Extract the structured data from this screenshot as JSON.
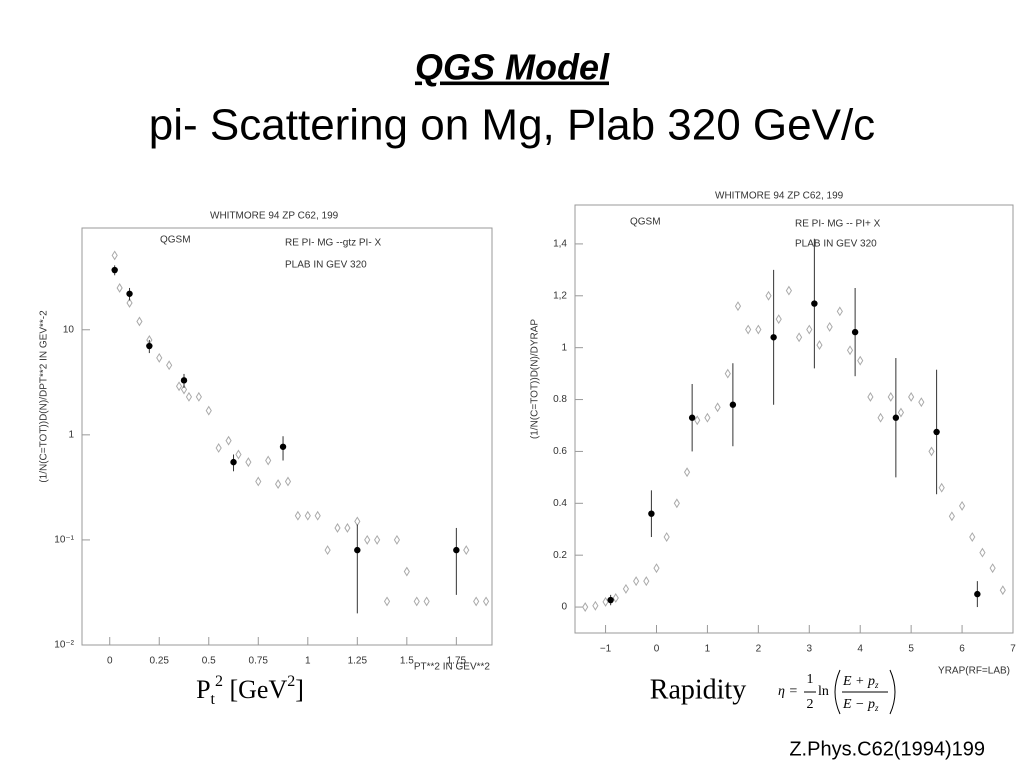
{
  "slide": {
    "title": "QGS Model",
    "subtitle": "pi- Scattering on Mg, Plab 320 GeV/c",
    "citation": "Z.Phys.C62(1994)199",
    "left_caption": {
      "base": "P",
      "sub": "t",
      "sup": "2",
      "unit": "[GeV",
      "unit_sup": "2",
      "close": "]"
    },
    "right_caption": "Rapidity",
    "formula": {
      "lhs": "η =",
      "num": "1",
      "den": "2",
      "ln": "ln",
      "top": "E + p",
      "top_sub": "z",
      "bottom": "E − p",
      "bottom_sub": "z"
    }
  },
  "chart_data": [
    {
      "type": "scatter",
      "notes": [
        "WHITMORE 94   ZP C62, 199",
        "QGSM",
        "RE   PI- MG --gtz PI- X",
        "PLAB IN GEV   320"
      ],
      "y_label": "(1/N(C=TOT))D(N)/DPT**2 IN GEV**-2",
      "x_label": "PT**2 IN GEV**2",
      "xlim": [
        -0.14,
        1.93
      ],
      "xticks": [
        0,
        0.25,
        0.5,
        0.75,
        1,
        1.25,
        1.5,
        1.75
      ],
      "ylim": [
        0.01,
        93
      ],
      "ylog": true,
      "yticks": [
        {
          "value": 0.01,
          "label": "10⁻²"
        },
        {
          "value": 0.1,
          "label": "10⁻¹"
        },
        1,
        10
      ],
      "series": [
        {
          "marker": "diamond",
          "color": "#aaaaaa",
          "x": [
            0.025,
            0.05,
            0.1,
            0.15,
            0.2,
            0.25,
            0.3,
            0.35,
            0.375,
            0.4,
            0.45,
            0.5,
            0.55,
            0.6,
            0.65,
            0.7,
            0.75,
            0.8,
            0.85,
            0.9,
            0.95,
            1.0,
            1.05,
            1.1,
            1.15,
            1.2,
            1.25,
            1.3,
            1.35,
            1.4,
            1.45,
            1.5,
            1.55,
            1.6,
            1.8,
            1.85,
            1.9
          ],
          "values": [
            51,
            25,
            18,
            12,
            8,
            5.4,
            4.6,
            2.9,
            2.7,
            2.3,
            2.3,
            1.7,
            0.75,
            0.88,
            0.65,
            0.55,
            0.36,
            0.57,
            0.34,
            0.36,
            0.17,
            0.17,
            0.17,
            0.08,
            0.13,
            0.13,
            0.15,
            0.1,
            0.1,
            0.026,
            0.1,
            0.05,
            0.026,
            0.026,
            0.08,
            0.026,
            0.026
          ]
        },
        {
          "marker": "dot",
          "color": "#000000",
          "x": [
            0.025,
            0.1,
            0.2,
            0.375,
            0.625,
            0.875,
            1.25,
            1.75
          ],
          "values": [
            37,
            22,
            7,
            3.3,
            0.55,
            0.77,
            0.08,
            0.08
          ],
          "errors": [
            4,
            3,
            1,
            0.5,
            0.1,
            0.2,
            0.06,
            0.05
          ]
        }
      ]
    },
    {
      "type": "scatter",
      "notes": [
        "WHITMORE 94   ZP C62, 199",
        "QGSM",
        "RE   PI- MG -- PI+ X",
        "PLAB IN GEV   320"
      ],
      "y_label": "(1/N(C=TOT))D(N)/DYRAP",
      "x_label": "YRAP(RF=LAB)",
      "xlim": [
        -1.6,
        7.0
      ],
      "xticks": [
        {
          "value": -1,
          "label": "−1"
        },
        0,
        1,
        2,
        3,
        4,
        5,
        6,
        7
      ],
      "ylim": [
        -0.1,
        1.55
      ],
      "ylog": false,
      "yticks": [
        0,
        0.2,
        0.4,
        0.6,
        0.8,
        1,
        {
          "value": 1.2,
          "label": "1,2"
        },
        {
          "value": 1.4,
          "label": "1,4"
        }
      ],
      "series": [
        {
          "marker": "diamond",
          "color": "#aaaaaa",
          "x": [
            -1.4,
            -1.2,
            -1.0,
            -0.8,
            -0.6,
            -0.4,
            -0.2,
            0,
            0.2,
            0.4,
            0.6,
            0.8,
            1.0,
            1.2,
            1.4,
            1.6,
            1.8,
            2.0,
            2.2,
            2.4,
            2.6,
            2.8,
            3.0,
            3.2,
            3.4,
            3.6,
            3.8,
            4.0,
            4.2,
            4.4,
            4.6,
            4.8,
            5.0,
            5.2,
            5.4,
            5.6,
            5.8,
            6.0,
            6.2,
            6.4,
            6.6,
            6.8
          ],
          "values": [
            0,
            0.005,
            0.02,
            0.035,
            0.07,
            0.1,
            0.1,
            0.15,
            0.27,
            0.4,
            0.52,
            0.72,
            0.73,
            0.77,
            0.9,
            1.16,
            1.07,
            1.07,
            1.2,
            1.11,
            1.22,
            1.04,
            1.07,
            1.01,
            1.08,
            1.14,
            0.99,
            0.95,
            0.81,
            0.73,
            0.81,
            0.75,
            0.81,
            0.79,
            0.6,
            0.46,
            0.35,
            0.39,
            0.27,
            0.21,
            0.15,
            0.065
          ]
        },
        {
          "marker": "dot",
          "color": "#000000",
          "x": [
            -0.9,
            -0.1,
            0.7,
            1.5,
            2.3,
            3.1,
            3.9,
            4.7,
            5.5,
            6.3
          ],
          "values": [
            0.027,
            0.36,
            0.73,
            0.78,
            1.04,
            1.17,
            1.06,
            0.73,
            0.675,
            0.05
          ],
          "errors": [
            0.02,
            0.09,
            0.13,
            0.16,
            0.26,
            0.25,
            0.17,
            0.23,
            0.24,
            0.05
          ]
        }
      ]
    }
  ]
}
